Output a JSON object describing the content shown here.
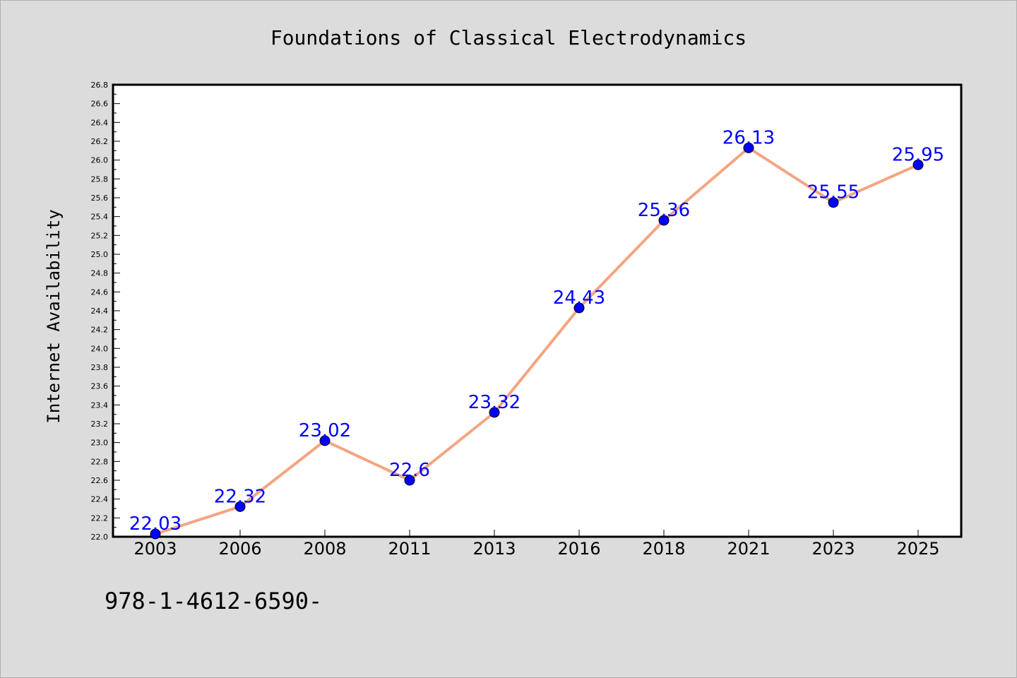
{
  "chart_data": {
    "type": "line",
    "title": "Foundations of Classical Electrodynamics",
    "xlabel": "",
    "ylabel": "Internet Availability",
    "categories": [
      "2003",
      "2006",
      "2008",
      "2011",
      "2013",
      "2016",
      "2018",
      "2021",
      "2023",
      "2025"
    ],
    "series": [
      {
        "values": [
          22.03,
          22.32,
          23.02,
          22.6,
          23.32,
          24.43,
          25.36,
          26.13,
          25.55,
          25.95
        ],
        "labels": [
          "22.03",
          "22.32",
          "23.02",
          "22.6",
          "23.32",
          "24.43",
          "25.36",
          "26.13",
          "25.55",
          "25.95"
        ],
        "line_color": "#f4a582",
        "marker_color": "#0000ff"
      }
    ],
    "ylim": [
      22.0,
      26.8
    ],
    "y_ticks": [
      "22.0",
      "22.2",
      "22.4",
      "22.6",
      "22.8",
      "23.0",
      "23.2",
      "23.4",
      "23.6",
      "23.8",
      "24.0",
      "24.2",
      "24.4",
      "24.6",
      "24.8",
      "25.0",
      "25.2",
      "25.4",
      "25.6",
      "25.8",
      "26.0",
      "26.2",
      "26.4",
      "26.6",
      "26.8"
    ],
    "grid": false,
    "legend": "none"
  },
  "footer": {
    "isbn": "978-1-4612-6590-"
  },
  "colors": {
    "background": "#dcdcdc",
    "plot_background": "#ffffff",
    "label_color": "#0000ff"
  }
}
